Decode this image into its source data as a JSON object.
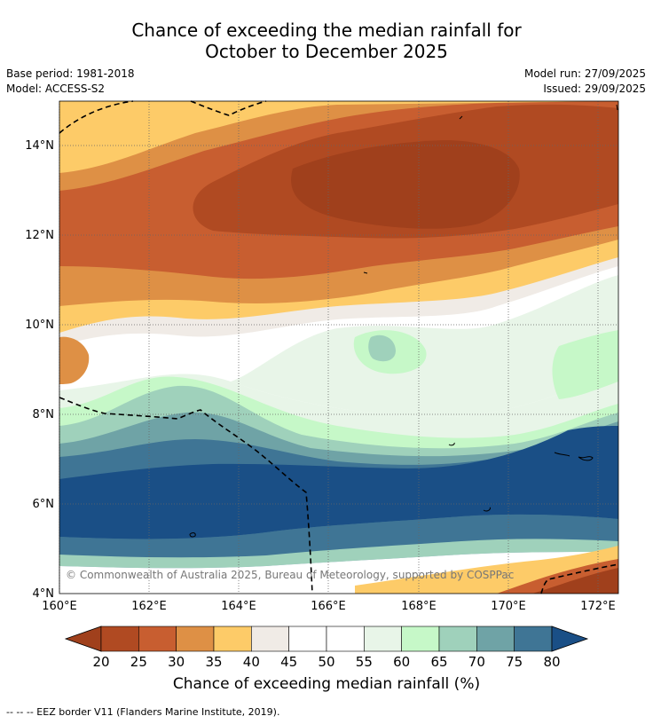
{
  "title": {
    "line1": "Chance of exceeding the median rainfall for",
    "line2": "October to December 2025"
  },
  "meta": {
    "base_period": "Base period: 1981-2018",
    "model": "Model: ACCESS-S2",
    "model_run": "Model run: 27/09/2025",
    "issued": "Issued: 29/09/2025"
  },
  "map": {
    "x_ticks": [
      "160°E",
      "162°E",
      "164°E",
      "166°E",
      "168°E",
      "170°E",
      "172°E"
    ],
    "y_ticks": [
      "14°N",
      "12°N",
      "10°N",
      "8°N",
      "6°N",
      "4°N"
    ],
    "copyright": "© Commonwealth of Australia 2025, Bureau of Meteorology, supported by COSPPac"
  },
  "colorbar": {
    "labels": [
      "20",
      "25",
      "30",
      "35",
      "40",
      "45",
      "50",
      "55",
      "60",
      "65",
      "70",
      "75",
      "80"
    ],
    "colors": [
      "#a0401c",
      "#b04a22",
      "#c85e30",
      "#de9045",
      "#fdcb68",
      "#f0ebe6",
      "#ffffff",
      "#ffffff",
      "#e8f5e8",
      "#c6f8c8",
      "#9fd1bb",
      "#6fa3a6",
      "#3f7595",
      "#1a4f86"
    ],
    "title": "Chance of exceeding median rainfall (%)"
  },
  "legend": {
    "text": "--  --  -- EEZ border V11 (Flanders Marine Institute, 2019)."
  }
}
